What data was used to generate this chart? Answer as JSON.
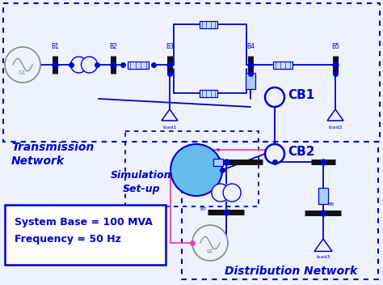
{
  "bg_color": "#eef2ff",
  "transmission_label": "Transmission\nNetwork",
  "simulation_label": "Simulation\nSet-up",
  "distribution_label": "Distribution Network",
  "info_text": "System Base = 100 MVA\nFrequency = 50 Hz",
  "cb1_label": "CB1",
  "cb2_label": "CB2",
  "blue": "#0000cc",
  "cyan_fill": "#66bbee",
  "pink": "#ee44aa",
  "bus_color": "#111111",
  "white": "#ffffff",
  "gen_color": "#888888",
  "tx_box_color": "#4466cc",
  "dist_box_color": "#2244aa",
  "load_color": "#4444cc"
}
